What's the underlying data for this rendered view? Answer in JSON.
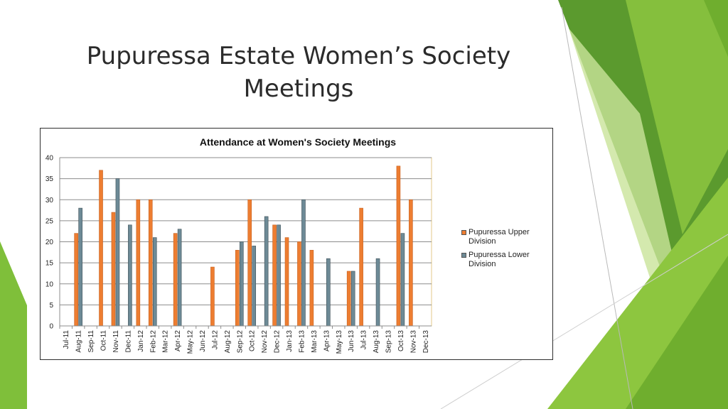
{
  "slide": {
    "title_line1": "Pupuressa Estate Women’s Society",
    "title_line2": "Meetings"
  },
  "colors": {
    "upper": "#ed7d31",
    "lower": "#6d8a96",
    "accent_green_dark": "#5b9a2e",
    "accent_green": "#8dc63f",
    "accent_green_light": "#c9e39a"
  },
  "chart_data": {
    "type": "bar",
    "title": "Attendance at Women's Society Meetings",
    "xlabel": "",
    "ylabel": "",
    "ylim": [
      0,
      40
    ],
    "yticks": [
      0,
      5,
      10,
      15,
      20,
      25,
      30,
      35,
      40
    ],
    "grid": true,
    "legend_position": "right",
    "categories": [
      "Jul-11",
      "Aug-11",
      "Sep-11",
      "Oct-11",
      "Nov-11",
      "Dec-11",
      "Jan-12",
      "Feb-12",
      "Mar-12",
      "Apr-12",
      "May-12",
      "Jun-12",
      "Jul-12",
      "Aug-12",
      "Sep-12",
      "Oct-12",
      "Nov-12",
      "Dec-12",
      "Jan-13",
      "Feb-13",
      "Mar-13",
      "Apr-13",
      "May-13",
      "Jun-13",
      "Jul-13",
      "Aug-13",
      "Sep-13",
      "Oct-13",
      "Nov-13",
      "Dec-13"
    ],
    "series": [
      {
        "name": "Pupuressa Upper Division",
        "values": [
          null,
          22,
          null,
          37,
          27,
          null,
          30,
          30,
          null,
          22,
          null,
          null,
          14,
          null,
          18,
          30,
          null,
          24,
          21,
          20,
          18,
          null,
          null,
          13,
          28,
          null,
          null,
          38,
          30,
          null
        ]
      },
      {
        "name": "Pupuressa Lower Division",
        "values": [
          null,
          28,
          null,
          null,
          35,
          24,
          null,
          21,
          null,
          23,
          null,
          null,
          null,
          null,
          20,
          19,
          26,
          24,
          null,
          30,
          null,
          16,
          null,
          13,
          null,
          16,
          null,
          22,
          null,
          null
        ]
      }
    ]
  }
}
